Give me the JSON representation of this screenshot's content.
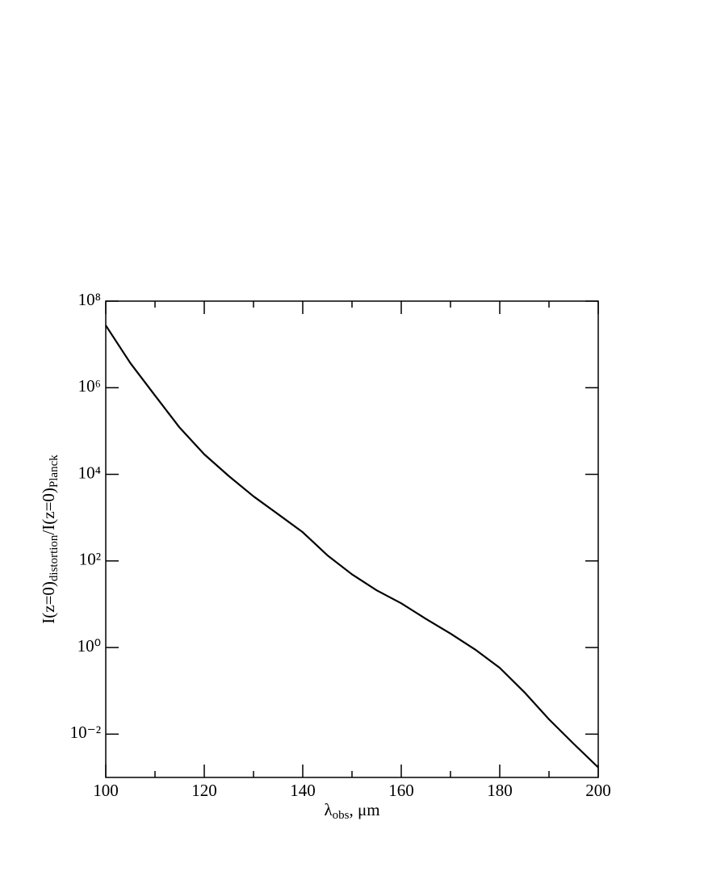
{
  "chart_data": {
    "type": "line",
    "x_label": [
      {
        "text": "λ"
      },
      {
        "text": "obs",
        "sub": true
      },
      {
        "text": ", μm"
      }
    ],
    "y_label": [
      {
        "text": "I(z=0)"
      },
      {
        "text": "distortion",
        "sub": true
      },
      {
        "text": "/I(z=0)"
      },
      {
        "text": "Planck",
        "sub": true
      }
    ],
    "x": [
      100,
      105,
      110,
      115,
      120,
      125,
      130,
      135,
      140,
      145,
      150,
      155,
      160,
      165,
      170,
      175,
      180,
      185,
      190,
      195,
      200
    ],
    "series": [
      {
        "color": "#000000",
        "values": [
          27500000,
          3700000,
          660000,
          120000,
          29000,
          9100,
          3100,
          1200,
          460,
          135,
          49,
          21,
          10.5,
          4.6,
          2.1,
          0.9,
          0.34,
          0.093,
          0.022,
          0.006,
          0.0017
        ]
      }
    ],
    "xlim": [
      100,
      200
    ],
    "xticks": [
      100,
      120,
      140,
      160,
      180,
      200
    ],
    "xticks_minor": [
      110,
      130,
      150,
      170,
      190
    ],
    "ylim": [
      0.001,
      100000000
    ],
    "ylog": true,
    "yticks": [
      {
        "value": 0.01,
        "label": "10⁻²"
      },
      {
        "value": 1,
        "label": "10⁰"
      },
      {
        "value": 100,
        "label": "10²"
      },
      {
        "value": 10000,
        "label": "10⁴"
      },
      {
        "value": 1000000,
        "label": "10⁶"
      },
      {
        "value": 100000000,
        "label": "10⁸"
      }
    ],
    "grid": false
  }
}
